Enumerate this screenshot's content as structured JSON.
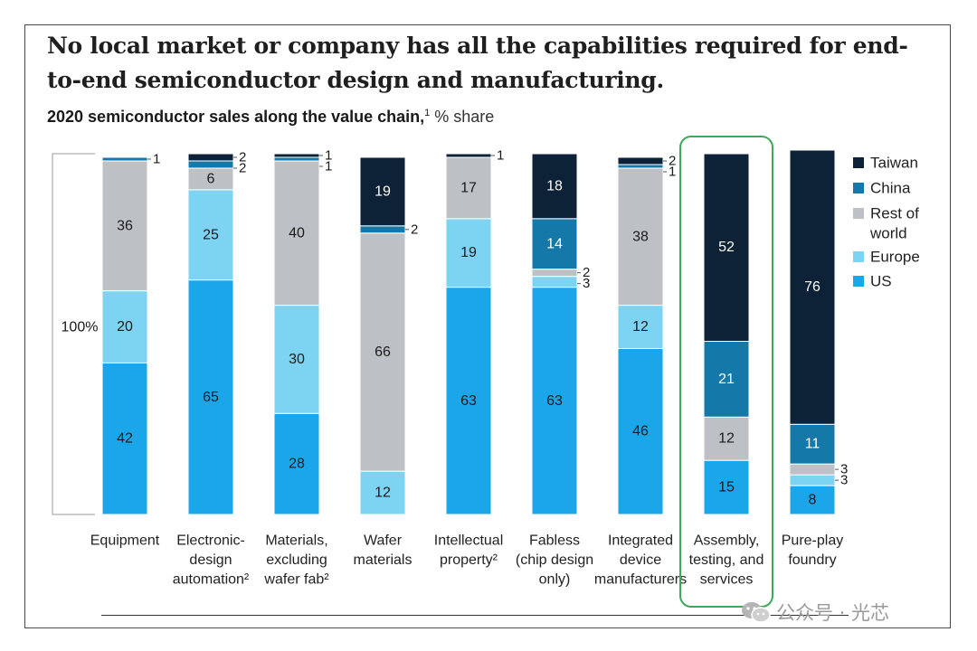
{
  "title": "No local market or company has all the capabilities required for end-to-end semiconductor design and manufacturing.",
  "subtitle": {
    "bold": "2020 semiconductor sales along the value chain,",
    "sup": "1",
    "unit": " % share"
  },
  "watermark": "公众号 · 光芯",
  "colors": {
    "Taiwan": "#0d2137",
    "China": "#1478a8",
    "Rest of world": "#bdc0c4",
    "Europe": "#7dd4f2",
    "US": "#1aa6e8",
    "highlight": "#3aa95a"
  },
  "chart_data": {
    "type": "bar",
    "stacked": true,
    "axis_label": "100%",
    "categories": [
      [
        "Equipment"
      ],
      [
        "Electronic-",
        "design",
        "automation²"
      ],
      [
        "Materials,",
        "excluding",
        "wafer fab²"
      ],
      [
        "Wafer",
        "materials"
      ],
      [
        "Intellectual",
        "property²"
      ],
      [
        "Fabless",
        "(chip design",
        "only)"
      ],
      [
        "Integrated",
        "device",
        "manufacturers"
      ],
      [
        "Assembly,",
        "testing, and",
        "services"
      ],
      [
        "Pure-play",
        "foundry"
      ]
    ],
    "stack_order_bottom_to_top": [
      "US",
      "Europe",
      "Rest of world",
      "China",
      "Taiwan"
    ],
    "series": [
      {
        "name": "US",
        "values": [
          42,
          65,
          28,
          0,
          63,
          63,
          46,
          15,
          8
        ]
      },
      {
        "name": "Europe",
        "values": [
          20,
          25,
          30,
          12,
          19,
          3,
          12,
          0,
          3
        ]
      },
      {
        "name": "Rest of world",
        "values": [
          36,
          6,
          40,
          66,
          17,
          2,
          38,
          12,
          3
        ]
      },
      {
        "name": "China",
        "values": [
          1,
          2,
          1,
          2,
          0,
          14,
          1,
          21,
          11
        ]
      },
      {
        "name": "Taiwan",
        "values": [
          0,
          2,
          1,
          19,
          1,
          18,
          2,
          52,
          76
        ]
      }
    ],
    "legend": [
      "Taiwan",
      "China",
      "Rest of world",
      "Europe",
      "US"
    ],
    "legend_position": "right",
    "highlighted_category": "Assembly, testing, and services",
    "ylim": [
      0,
      100
    ]
  }
}
